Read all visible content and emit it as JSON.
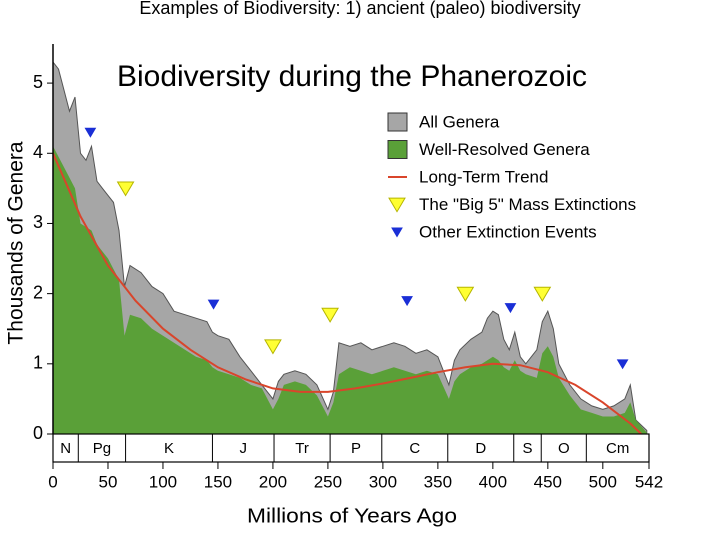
{
  "slide_title": "Examples of Biodiversity: 1) ancient (paleo) biodiversity",
  "chart_data": {
    "type": "area",
    "title": "Biodiversity during the Phanerozoic",
    "x_label": "Millions of Years Ago",
    "y_label": "Thousands of Genera",
    "x": [
      0,
      5,
      10,
      15,
      20,
      25,
      30,
      35,
      40,
      45,
      50,
      55,
      60,
      65,
      70,
      80,
      90,
      100,
      110,
      120,
      130,
      140,
      145,
      150,
      160,
      170,
      180,
      190,
      200,
      205,
      210,
      220,
      230,
      240,
      250,
      255,
      260,
      270,
      280,
      290,
      300,
      310,
      320,
      330,
      340,
      350,
      360,
      365,
      370,
      380,
      390,
      395,
      400,
      405,
      410,
      415,
      420,
      425,
      430,
      440,
      445,
      450,
      455,
      460,
      470,
      480,
      490,
      500,
      510,
      520,
      525,
      530,
      540
    ],
    "series": [
      {
        "name": "All Genera",
        "color": "#a6a6a6",
        "values": [
          5.3,
          5.2,
          4.9,
          4.6,
          4.8,
          4.0,
          3.9,
          4.1,
          3.6,
          3.5,
          3.4,
          3.3,
          2.9,
          2.1,
          2.4,
          2.3,
          2.1,
          2.0,
          1.75,
          1.7,
          1.65,
          1.6,
          1.45,
          1.4,
          1.35,
          1.1,
          0.9,
          0.7,
          0.5,
          0.75,
          0.85,
          0.9,
          0.85,
          0.7,
          0.35,
          0.6,
          1.3,
          1.25,
          1.3,
          1.2,
          1.25,
          1.3,
          1.25,
          1.15,
          1.2,
          1.1,
          0.7,
          1.05,
          1.2,
          1.35,
          1.45,
          1.65,
          1.75,
          1.7,
          1.35,
          1.2,
          1.45,
          1.1,
          1.0,
          1.2,
          1.6,
          1.75,
          1.5,
          1.0,
          0.7,
          0.5,
          0.4,
          0.35,
          0.4,
          0.5,
          0.7,
          0.2,
          0.05
        ]
      },
      {
        "name": "Well-Resolved Genera",
        "color": "#5aa038",
        "values": [
          4.1,
          3.95,
          3.8,
          3.65,
          3.5,
          3.0,
          2.95,
          2.9,
          2.7,
          2.6,
          2.5,
          2.35,
          2.2,
          1.4,
          1.7,
          1.65,
          1.5,
          1.4,
          1.3,
          1.2,
          1.1,
          1.05,
          0.95,
          0.9,
          0.85,
          0.8,
          0.7,
          0.65,
          0.35,
          0.5,
          0.7,
          0.75,
          0.7,
          0.55,
          0.25,
          0.45,
          0.85,
          0.95,
          0.9,
          0.85,
          0.9,
          0.95,
          0.9,
          0.85,
          0.9,
          0.85,
          0.5,
          0.75,
          0.85,
          0.95,
          1.0,
          1.05,
          1.1,
          1.05,
          0.95,
          0.9,
          1.05,
          0.9,
          0.85,
          0.8,
          1.15,
          1.25,
          1.1,
          0.8,
          0.55,
          0.35,
          0.3,
          0.25,
          0.25,
          0.3,
          0.45,
          0.2,
          0.02
        ]
      },
      {
        "name": "Long-Term Trend",
        "color": "#d9452b",
        "x": [
          0,
          25,
          50,
          75,
          100,
          125,
          150,
          175,
          200,
          225,
          250,
          275,
          300,
          325,
          350,
          375,
          400,
          425,
          450,
          475,
          500,
          525,
          535
        ],
        "values": [
          4.0,
          3.1,
          2.4,
          1.9,
          1.5,
          1.2,
          0.95,
          0.78,
          0.65,
          0.6,
          0.6,
          0.65,
          0.72,
          0.8,
          0.88,
          0.95,
          1.0,
          0.98,
          0.88,
          0.7,
          0.45,
          0.15,
          0.0
        ]
      },
      {
        "name": "The \"Big 5\" Mass Extinctions",
        "color": "#ffff33",
        "marker": "triangle-down",
        "x": [
          66,
          200,
          252,
          375,
          445
        ],
        "values": [
          3.5,
          1.25,
          1.7,
          2.0,
          2.0
        ]
      },
      {
        "name": "Other Extinction Events",
        "color": "#1a2fd6",
        "marker": "triangle-down",
        "x": [
          34,
          146,
          322,
          416,
          518
        ],
        "values": [
          4.3,
          1.85,
          1.9,
          1.8,
          1.0
        ]
      }
    ],
    "periods": {
      "labels": [
        "N",
        "Pg",
        "K",
        "J",
        "Tr",
        "P",
        "C",
        "D",
        "S",
        "O",
        "Cm"
      ],
      "bounds": [
        0,
        23,
        66,
        145,
        201,
        252,
        299,
        359,
        419,
        444,
        485,
        542
      ]
    },
    "xlim": [
      0,
      542
    ],
    "xticks": [
      0,
      50,
      100,
      150,
      200,
      250,
      300,
      350,
      400,
      450,
      500,
      542
    ],
    "ylim": [
      0,
      5.5
    ],
    "yticks": [
      0,
      1,
      2,
      3,
      4,
      5
    ]
  }
}
